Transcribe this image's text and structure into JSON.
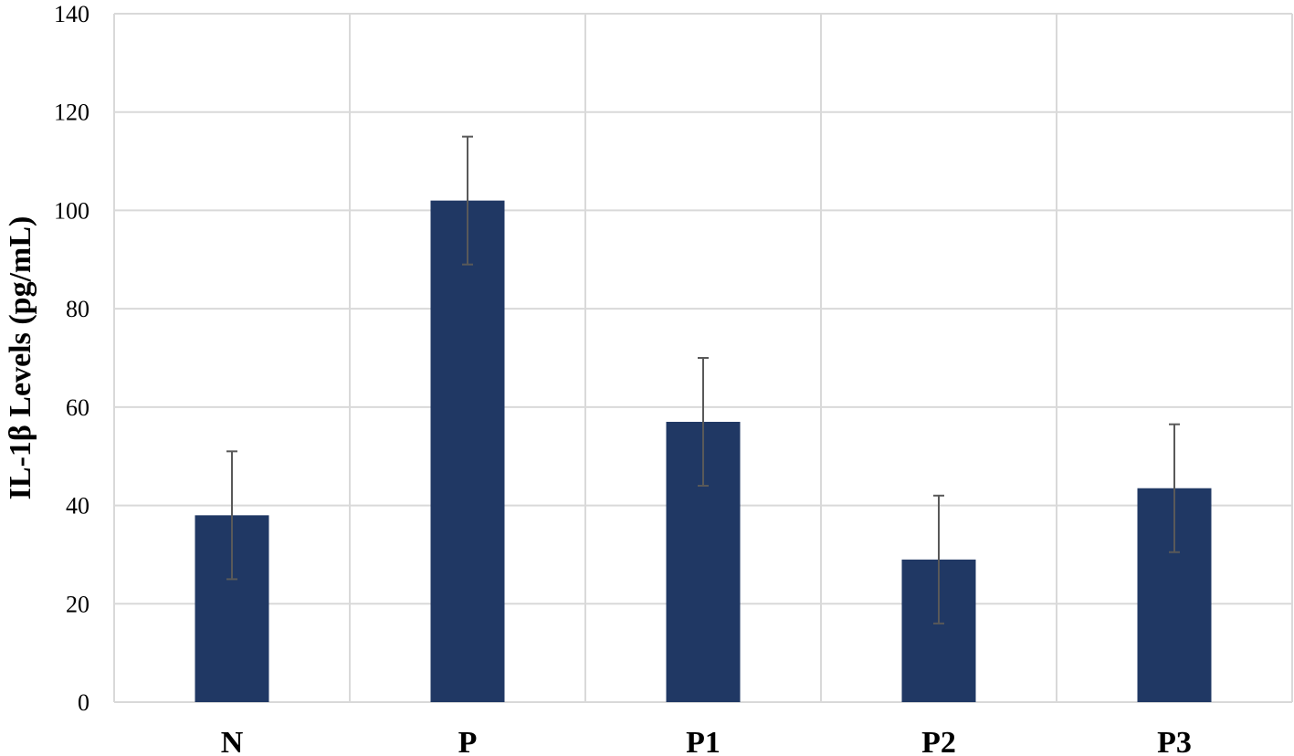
{
  "chart_data": {
    "type": "bar",
    "title": "",
    "xlabel": "",
    "ylabel": "IL-1β  Levels (pg/mL)",
    "categories": [
      "N",
      "P",
      "P1",
      "P2",
      "P3"
    ],
    "series": [
      {
        "values": [
          38,
          102,
          57,
          29,
          43.5
        ],
        "error": [
          13,
          13,
          13,
          13,
          13
        ],
        "color": "#203864"
      }
    ],
    "ylim": [
      0,
      140
    ],
    "yticks": [
      0,
      20,
      40,
      60,
      80,
      100,
      120,
      140
    ],
    "grid": true,
    "legend": "none",
    "colors": {
      "bar": "#203864",
      "grid": "#d9d9d9",
      "error_bar": "#595959"
    }
  }
}
